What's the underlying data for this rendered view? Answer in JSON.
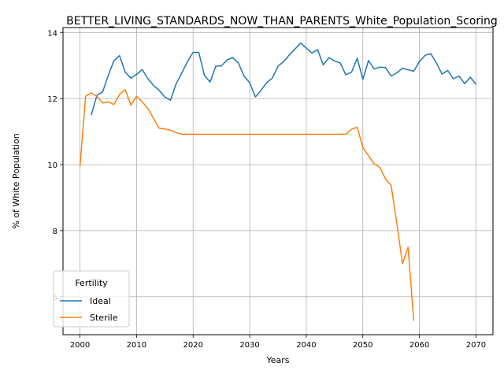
{
  "chart_data": {
    "type": "line",
    "title": "BETTER_LIVING_STANDARDS_NOW_THAN_PARENTS_White_Population_Scoring",
    "xlabel": "Years",
    "ylabel": "% of White Population",
    "xlim": [
      1997,
      2073
    ],
    "ylim": [
      4.85,
      14.15
    ],
    "x_ticks": [
      2000,
      2010,
      2020,
      2030,
      2040,
      2050,
      2060,
      2070
    ],
    "y_ticks": [
      6,
      8,
      10,
      12,
      14
    ],
    "grid": true,
    "legend": {
      "title": "Fertility",
      "placement": "lower-left"
    },
    "series": [
      {
        "name": "Ideal",
        "color": "#1f77b4",
        "x": [
          2002,
          2003,
          2004,
          2005,
          2006,
          2007,
          2008,
          2009,
          2010,
          2011,
          2012,
          2013,
          2014,
          2015,
          2016,
          2017,
          2018,
          2019,
          2020,
          2021,
          2022,
          2023,
          2024,
          2025,
          2026,
          2027,
          2028,
          2029,
          2030,
          2031,
          2032,
          2033,
          2034,
          2035,
          2036,
          2037,
          2038,
          2039,
          2040,
          2041,
          2042,
          2043,
          2044,
          2045,
          2046,
          2047,
          2048,
          2049,
          2050,
          2051,
          2052,
          2053,
          2054,
          2055,
          2056,
          2057,
          2058,
          2059,
          2060,
          2061,
          2062,
          2063,
          2064,
          2065,
          2066,
          2067,
          2068,
          2069,
          2070
        ],
        "y": [
          11.5,
          12.1,
          12.2,
          12.7,
          13.15,
          13.3,
          12.8,
          12.62,
          12.73,
          12.88,
          12.6,
          12.4,
          12.25,
          12.05,
          11.95,
          12.45,
          12.78,
          13.12,
          13.4,
          13.4,
          12.7,
          12.5,
          12.98,
          12.99,
          13.17,
          13.24,
          13.08,
          12.68,
          12.48,
          12.05,
          12.25,
          12.48,
          12.62,
          12.98,
          13.12,
          13.32,
          13.5,
          13.68,
          13.53,
          13.38,
          13.48,
          13.02,
          13.24,
          13.14,
          13.08,
          12.72,
          12.8,
          13.22,
          12.58,
          13.15,
          12.9,
          12.95,
          12.94,
          12.68,
          12.78,
          12.92,
          12.87,
          12.83,
          13.12,
          13.31,
          13.36,
          13.08,
          12.74,
          12.85,
          12.6,
          12.68,
          12.45,
          12.65,
          12.43
        ]
      },
      {
        "name": "Sterile",
        "color": "#ff7f0e",
        "x": [
          2000,
          2001,
          2002,
          2003,
          2004,
          2005,
          2006,
          2007,
          2008,
          2009,
          2010,
          2011,
          2012,
          2013,
          2014,
          2015,
          2016,
          2017,
          2018,
          2019,
          2020,
          2021,
          2022,
          2023,
          2024,
          2025,
          2026,
          2027,
          2028,
          2029,
          2030,
          2031,
          2032,
          2033,
          2034,
          2035,
          2036,
          2037,
          2038,
          2039,
          2040,
          2041,
          2042,
          2043,
          2044,
          2045,
          2046,
          2047,
          2048,
          2049,
          2050,
          2051,
          2052,
          2053,
          2054,
          2055,
          2056,
          2057,
          2058,
          2059
        ],
        "y": [
          9.95,
          12.07,
          12.17,
          12.07,
          11.87,
          11.9,
          11.82,
          12.13,
          12.27,
          11.8,
          12.07,
          11.9,
          11.7,
          11.4,
          11.1,
          11.08,
          11.04,
          10.97,
          10.92,
          10.92,
          10.92,
          10.92,
          10.92,
          10.92,
          10.92,
          10.92,
          10.92,
          10.92,
          10.92,
          10.92,
          10.92,
          10.92,
          10.92,
          10.92,
          10.92,
          10.92,
          10.92,
          10.92,
          10.92,
          10.92,
          10.92,
          10.92,
          10.92,
          10.92,
          10.92,
          10.92,
          10.92,
          10.92,
          11.07,
          11.13,
          10.52,
          10.27,
          10.02,
          9.92,
          9.57,
          9.37,
          8.22,
          7.0,
          7.5,
          5.27
        ]
      }
    ]
  }
}
